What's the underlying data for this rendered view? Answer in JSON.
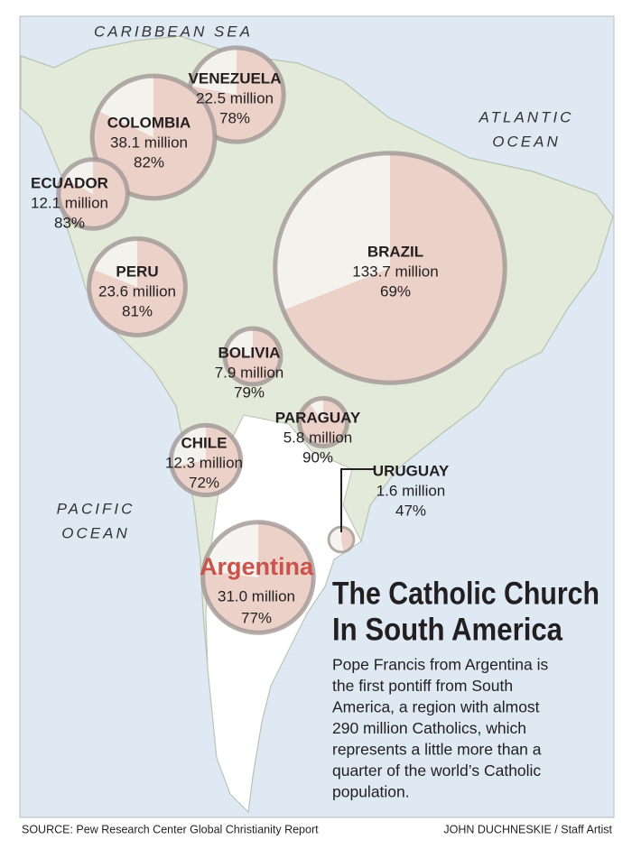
{
  "ocean_labels": {
    "caribbean": "CARIBBEAN SEA",
    "atlantic": [
      "ATLANTIC",
      "OCEAN"
    ],
    "pacific": [
      "PACIFIC",
      "OCEAN"
    ]
  },
  "countries": [
    {
      "name": "VENEZUELA",
      "population": 22.5,
      "population_label": "22.5 million",
      "catholic_percent": 78,
      "catholic_percent_label": "78%"
    },
    {
      "name": "COLOMBIA",
      "population": 38.1,
      "population_label": "38.1 million",
      "catholic_percent": 82,
      "catholic_percent_label": "82%"
    },
    {
      "name": "ECUADOR",
      "population": 12.1,
      "population_label": "12.1 million",
      "catholic_percent": 83,
      "catholic_percent_label": "83%"
    },
    {
      "name": "PERU",
      "population": 23.6,
      "population_label": "23.6 million",
      "catholic_percent": 81,
      "catholic_percent_label": "81%"
    },
    {
      "name": "BRAZIL",
      "population": 133.7,
      "population_label": "133.7 million",
      "catholic_percent": 69,
      "catholic_percent_label": "69%"
    },
    {
      "name": "BOLIVIA",
      "population": 7.9,
      "population_label": "7.9 million",
      "catholic_percent": 79,
      "catholic_percent_label": "79%"
    },
    {
      "name": "PARAGUAY",
      "population": 5.8,
      "population_label": "5.8 million",
      "catholic_percent": 90,
      "catholic_percent_label": "90%"
    },
    {
      "name": "CHILE",
      "population": 12.3,
      "population_label": "12.3 million",
      "catholic_percent": 72,
      "catholic_percent_label": "72%"
    },
    {
      "name": "URUGUAY",
      "population": 1.6,
      "population_label": "1.6 million",
      "catholic_percent": 47,
      "catholic_percent_label": "47%"
    },
    {
      "name": "Argentina",
      "population": 31.0,
      "population_label": "31.0 million",
      "catholic_percent": 77,
      "catholic_percent_label": "77%"
    }
  ],
  "title": [
    "The Catholic Church",
    "In South America"
  ],
  "body": [
    "Pope Francis from Argentina is",
    "the first pontiff from South",
    "America, a region with almost",
    "290 million Catholics, which",
    "represents a little more than a",
    "quarter of the world’s Catholic",
    "population."
  ],
  "source": "SOURCE: Pew Research Center Global Christianity Report",
  "credit": "JOHN DUCHNESKIE / Staff Artist"
}
